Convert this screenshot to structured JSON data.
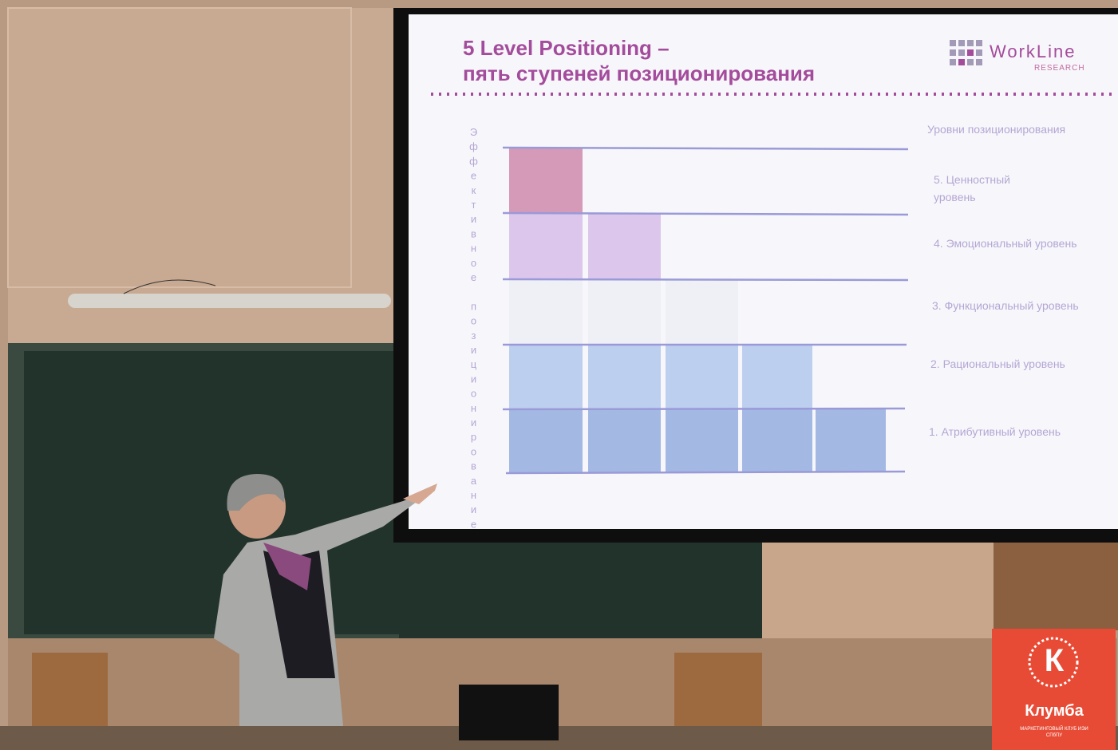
{
  "slide": {
    "title": "5 Level Positioning –",
    "subtitle": "пять ступеней позиционирования",
    "logo": {
      "name": "WorkLine",
      "sub": "RESEARCH"
    },
    "y_axis_label": "Эффективное позиционирование",
    "legend_title": "Уровни позиционирования",
    "levels": [
      "5. Ценностный уровень",
      "4. Эмоциональный уровень",
      "3. Функциональный уровень",
      "2. Рациональный уровень",
      "1. Атрибутивный уровень"
    ]
  },
  "badge": {
    "letter": "К",
    "name": "Клумба",
    "tagline": "МАРКЕТИНГОВЫЙ КЛУБ ИЭИ СПбПУ"
  }
}
